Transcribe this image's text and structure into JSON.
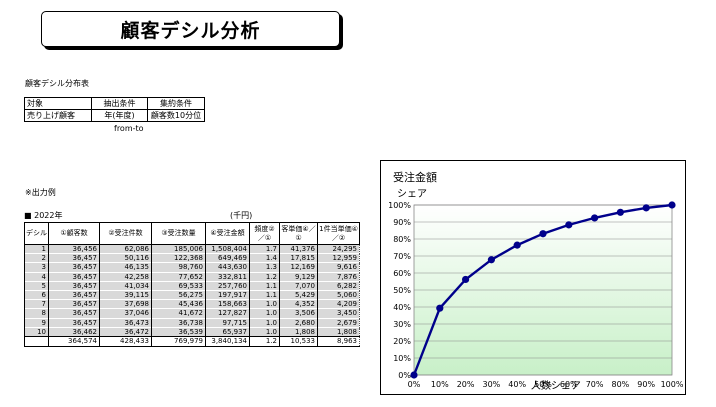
{
  "title": "顧客デシル分析",
  "subtitle": "顧客デシル分布表",
  "conditions": {
    "headers": [
      "対象",
      "抽出条件",
      "集約条件"
    ],
    "row": [
      "売り上げ顧客",
      "年(年度)",
      "顧客数10分位"
    ],
    "note": "from-to"
  },
  "output_example": "※出力例",
  "year_label": "■ 2022年",
  "unit_label": "(千円)",
  "table": {
    "headers": [
      "デシル",
      "①顧客数",
      "②受注件数",
      "③受注数量",
      "④受注金額",
      "頻度②／①",
      "客単価④／①",
      "1件当単価④／②"
    ],
    "rows": [
      [
        "1",
        "36,456",
        "62,086",
        "185,006",
        "1,508,404",
        "1.7",
        "41,376",
        "24,295"
      ],
      [
        "2",
        "36,457",
        "50,116",
        "122,368",
        "649,469",
        "1.4",
        "17,815",
        "12,959"
      ],
      [
        "3",
        "36,457",
        "46,135",
        "98,760",
        "443,630",
        "1.3",
        "12,169",
        "9,616"
      ],
      [
        "4",
        "36,457",
        "42,258",
        "77,652",
        "332,811",
        "1.2",
        "9,129",
        "7,876"
      ],
      [
        "5",
        "36,457",
        "41,034",
        "69,533",
        "257,760",
        "1.1",
        "7,070",
        "6,282"
      ],
      [
        "6",
        "36,457",
        "39,115",
        "56,275",
        "197,917",
        "1.1",
        "5,429",
        "5,060"
      ],
      [
        "7",
        "36,457",
        "37,698",
        "45,436",
        "158,663",
        "1.0",
        "4,352",
        "4,209"
      ],
      [
        "8",
        "36,457",
        "37,046",
        "41,672",
        "127,827",
        "1.0",
        "3,506",
        "3,450"
      ],
      [
        "9",
        "36,457",
        "36,473",
        "36,738",
        "97,715",
        "1.0",
        "2,680",
        "2,679"
      ],
      [
        "10",
        "36,462",
        "36,472",
        "36,539",
        "65,937",
        "1.0",
        "1,808",
        "1,808"
      ]
    ],
    "total": [
      "",
      "364,574",
      "428,433",
      "769,979",
      "3,840,134",
      "1.2",
      "10,533",
      "8,963"
    ]
  },
  "chart_data": {
    "type": "line",
    "title": "受注金額",
    "subtitle": "シェア",
    "xlabel": "人数シェア",
    "x": [
      0,
      10,
      20,
      30,
      40,
      50,
      60,
      70,
      80,
      90,
      100
    ],
    "values": [
      0,
      39.3,
      56.2,
      67.8,
      76.4,
      83.1,
      88.3,
      92.4,
      95.7,
      98.3,
      100
    ],
    "xlim": [
      0,
      100
    ],
    "ylim": [
      0,
      100
    ],
    "x_tick_labels": [
      "0%",
      "10%",
      "20%",
      "30%",
      "40%",
      "50%",
      "60%",
      "70%",
      "80%",
      "90%",
      "100%"
    ],
    "y_tick_labels": [
      "0%",
      "10%",
      "20%",
      "30%",
      "40%",
      "50%",
      "60%",
      "70%",
      "80%",
      "90%",
      "100%"
    ],
    "line_color": "#00008b",
    "fill_top": "#ffffff",
    "fill_bottom": "#c8f0c8"
  }
}
